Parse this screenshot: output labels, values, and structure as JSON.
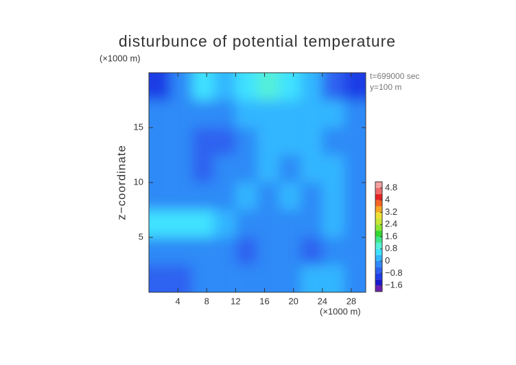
{
  "chart_data": {
    "type": "contour",
    "title": "disturbunce of potential temperature",
    "y_unit": "(×1000 m)",
    "x_unit": "(×1000 m)",
    "y_label": "z−coordinate",
    "annotations": [
      "t=699000 sec",
      "y=100 m"
    ],
    "xlim": [
      0,
      30
    ],
    "ylim": [
      0,
      20
    ],
    "xticks": [
      4,
      8,
      12,
      16,
      20,
      24,
      28
    ],
    "yticks": [
      5,
      10,
      15
    ],
    "x": [
      1.5,
      4.5,
      7.5,
      10.5,
      13.5,
      16.5,
      19.5,
      22.5,
      25.5,
      28.5
    ],
    "z": [
      18.75,
      16.25,
      13.75,
      11.25,
      8.75,
      6.25,
      3.75,
      1.25
    ],
    "values": [
      [
        -1.0,
        -0.2,
        0.4,
        0.2,
        0.6,
        0.8,
        0.6,
        0.2,
        -0.6,
        -1.2
      ],
      [
        -0.4,
        -0.4,
        -0.4,
        -0.2,
        0.2,
        0.2,
        0.2,
        0.0,
        0.0,
        -0.2
      ],
      [
        -0.2,
        -0.4,
        -0.6,
        -0.6,
        -0.2,
        0.0,
        0.0,
        0.0,
        -0.2,
        -0.2
      ],
      [
        -0.2,
        -0.2,
        -0.6,
        -0.4,
        -0.2,
        0.0,
        -0.2,
        0.0,
        0.0,
        -0.2
      ],
      [
        -0.2,
        -0.4,
        -0.4,
        -0.2,
        0.0,
        -0.2,
        0.0,
        -0.2,
        0.0,
        -0.2
      ],
      [
        0.4,
        0.4,
        0.4,
        0.0,
        -0.2,
        -0.2,
        -0.2,
        -0.2,
        0.0,
        -0.2
      ],
      [
        -0.2,
        -0.2,
        -0.2,
        -0.2,
        -0.6,
        -0.4,
        -0.4,
        -0.8,
        -0.2,
        -0.2
      ],
      [
        -0.6,
        -0.6,
        -0.4,
        -0.4,
        -0.4,
        -0.2,
        -0.2,
        0.2,
        0.2,
        -0.2
      ]
    ],
    "colorbar": {
      "levels": [
        -2.0,
        -1.6,
        -1.2,
        -0.8,
        -0.4,
        0,
        0.4,
        0.8,
        1.2,
        1.6,
        2.0,
        2.4,
        2.8,
        3.2,
        3.6,
        4.0,
        4.4,
        4.8,
        5.2
      ],
      "colors": [
        "#6a1fb0",
        "#1a1acc",
        "#1e3ee6",
        "#2d62f0",
        "#2f8af7",
        "#33b6ff",
        "#3fe2ff",
        "#55f0d8",
        "#3ee68a",
        "#33d633",
        "#8fe633",
        "#c8e633",
        "#f0e033",
        "#f5a623",
        "#f56423",
        "#e62323",
        "#f06a6a",
        "#f5a0a0"
      ],
      "ticks": [
        4.8,
        4,
        3.2,
        2.4,
        1.6,
        0.8,
        0,
        {
          "value": -0.8,
          "label": "−0.8"
        },
        {
          "value": -1.6,
          "label": "−1.6"
        }
      ]
    }
  }
}
